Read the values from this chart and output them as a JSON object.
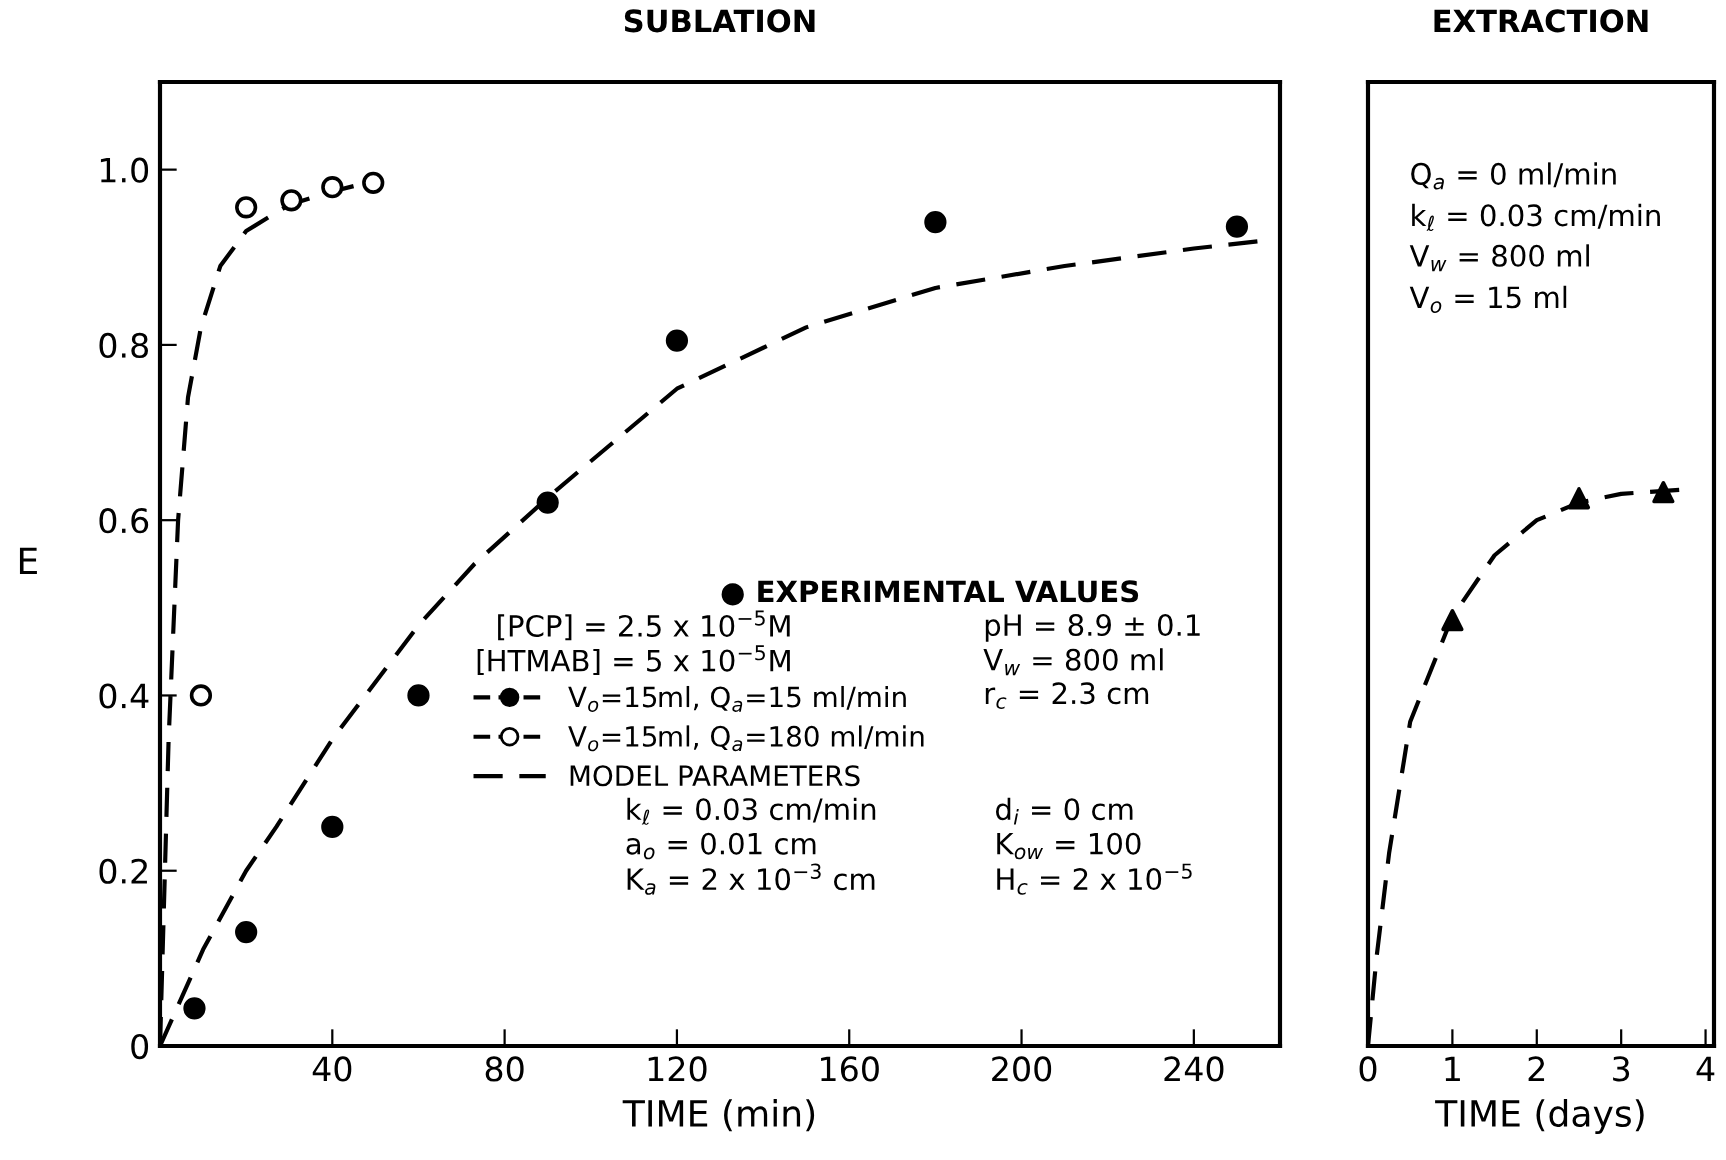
{
  "chart_data": [
    {
      "type": "scatter",
      "title": "SUBLATION",
      "xlabel": "TIME (min)",
      "ylabel": "E",
      "xlim": [
        0,
        260
      ],
      "ylim": [
        0,
        1.1
      ],
      "xticks": [
        40,
        80,
        120,
        160,
        200,
        240
      ],
      "yticks": [
        0,
        {
          "value": 0.2,
          "label": "0.2"
        },
        {
          "value": 0.4,
          "label": "0.4"
        },
        {
          "value": 0.6,
          "label": "0.6"
        },
        {
          "value": 0.8,
          "label": "0.8"
        },
        {
          "value": 1.0,
          "label": "1.0"
        }
      ],
      "grid": false,
      "legend": "right",
      "series": [
        {
          "name": "V$_{o}$=15ml, Q$_{a}$=15 ml/min",
          "marker": "circle",
          "color": "#000000",
          "x": [
            8,
            20,
            40,
            60,
            90,
            120,
            180,
            250
          ],
          "values": [
            0.043,
            0.13,
            0.25,
            0.4,
            0.62,
            0.805,
            0.94,
            0.935
          ]
        },
        {
          "name": "V$_{o}$=15ml, Q$_{a}$=180 ml/min",
          "marker": "circle",
          "color": "#000000",
          "x": [
            9.5,
            20,
            30.5,
            40,
            49.5
          ],
          "values": [
            0.4,
            0.957,
            0.965,
            0.98,
            0.985
          ]
        },
        {
          "name": "MODEL PARAMETERS",
          "type": "line",
          "line_style": "dashed",
          "color": "#000000",
          "x": [
            0,
            2,
            4.2,
            6.5,
            9.5,
            14,
            20,
            30,
            40,
            48
          ],
          "values": [
            0,
            0.35,
            0.6,
            0.74,
            0.82,
            0.89,
            0.93,
            0.96,
            0.975,
            0.985
          ]
        },
        {
          "type": "line",
          "line_style": "dashed",
          "color": "#000000",
          "x": [
            0,
            10,
            20,
            27,
            40,
            60,
            73,
            91,
            120,
            150,
            180,
            210,
            240,
            258
          ],
          "values": [
            0,
            0.11,
            0.2,
            0.25,
            0.35,
            0.48,
            0.55,
            0.63,
            0.75,
            0.82,
            0.865,
            0.89,
            0.91,
            0.92
          ]
        }
      ],
      "annotations": [
        "● EXPERIMENTAL VALUES",
        "[PCP] = 2.5 x 10$^{−5}$M",
        "pH = 8.9 ± 0.1",
        "[HTMAB] = 5 x 10$^{−5}$M",
        "V$_{w}$ = 800 ml",
        "r$_{c}$ = 2.3 cm",
        "k$_{ℓ}$ = 0.03 cm/min",
        "d$_{i}$ = 0 cm",
        "a$_{o}$ = 0.01 cm",
        "K$_{ow}$ = 100",
        "K$_{a}$ = 2 x 10$^{−3}$ cm",
        "H$_{c}$ = 2 x 10$^{−5}$"
      ]
    },
    {
      "type": "scatter",
      "title": "EXTRACTION",
      "xlabel": "TIME (days)",
      "xlim": [
        0,
        4.1
      ],
      "ylim": [
        0,
        1.1
      ],
      "xticks": [
        0,
        1,
        2,
        3,
        4
      ],
      "grid": false,
      "tick_labels": "x",
      "series": [
        {
          "marker": "triangle",
          "color": "#000000",
          "x": [
            1,
            2.5,
            3.5
          ],
          "values": [
            0.486,
            0.625,
            0.632
          ]
        },
        {
          "type": "line",
          "line_style": "dashed",
          "color": "#000000",
          "x": [
            0,
            0.1,
            0.25,
            0.5,
            1,
            1.5,
            2,
            2.5,
            3,
            3.75
          ],
          "values": [
            0,
            0.1,
            0.22,
            0.37,
            0.49,
            0.56,
            0.6,
            0.62,
            0.63,
            0.635
          ]
        }
      ],
      "annotations": [
        "Q$_{a}$ = 0 ml/min",
        "k$_{ℓ}$ = 0.03 cm/min",
        "V$_{w}$ = 800 ml",
        "V$_{o}$ = 15 ml"
      ]
    }
  ]
}
